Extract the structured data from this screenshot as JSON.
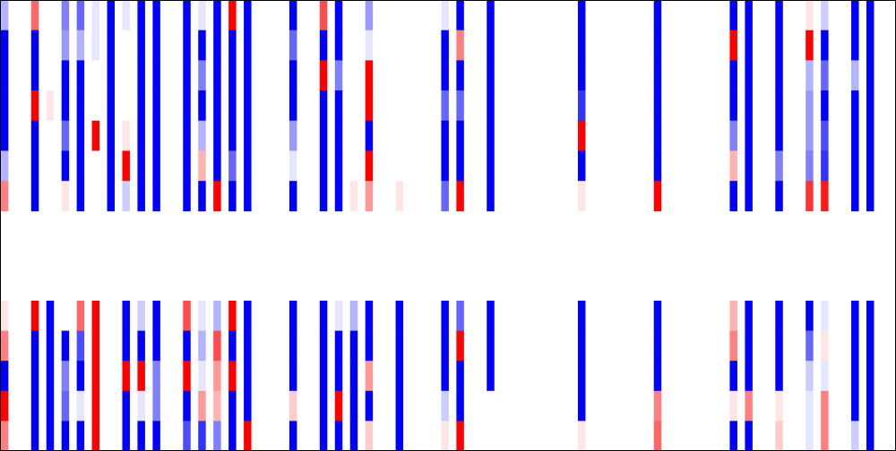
{
  "colors": {
    "negative": "#0000ff",
    "neutral": "#ffffff",
    "positive": "#ff0000",
    "border": "#000000"
  },
  "chart_data": {
    "type": "heatmap",
    "title": "",
    "xlabel": "",
    "ylabel": "",
    "color_scale": {
      "min": -1,
      "max": 1,
      "low_color": "#0000ff",
      "mid_color": "#ffffff",
      "high_color": "#ff0000"
    },
    "grid": false,
    "legend": "none",
    "cols": 59,
    "blocks": [
      {
        "name": "",
        "rows": 7,
        "columns": [
          {
            "col": 0,
            "values": [
              -0.3,
              -1,
              -1,
              -1,
              -1,
              -0.3,
              0.5
            ]
          },
          {
            "col": 2,
            "values": [
              0.6,
              -1,
              -1,
              1,
              -1,
              -1,
              -1
            ]
          },
          {
            "col": 3,
            "values": [
              0,
              0,
              0,
              0.1,
              0,
              0,
              0
            ]
          },
          {
            "col": 4,
            "values": [
              -0.5,
              -0.4,
              -1,
              -1,
              -0.6,
              -1,
              0.1
            ]
          },
          {
            "col": 5,
            "values": [
              -0.6,
              -0.3,
              -1,
              -1,
              -1,
              -1,
              -1
            ]
          },
          {
            "col": 6,
            "values": [
              -0.1,
              -0.1,
              0,
              0,
              1,
              0,
              0
            ]
          },
          {
            "col": 7,
            "values": [
              -1,
              -1,
              -1,
              -1,
              -1,
              -1,
              -1
            ]
          },
          {
            "col": 8,
            "values": [
              -0.1,
              0,
              0,
              0,
              0.1,
              1,
              -0.2
            ]
          },
          {
            "col": 9,
            "values": [
              -1,
              -1,
              -1,
              -1,
              -1,
              -1,
              -1
            ]
          },
          {
            "col": 10,
            "values": [
              -1,
              -1,
              -1,
              -1,
              -1,
              -1,
              -1
            ]
          },
          {
            "col": 12,
            "values": [
              -1,
              -1,
              -1,
              -1,
              -1,
              -1,
              -1
            ]
          },
          {
            "col": 13,
            "values": [
              -0.1,
              -1,
              -0.5,
              -1,
              -0.3,
              0.3,
              -1
            ]
          },
          {
            "col": 14,
            "values": [
              -1,
              -1,
              -1,
              -1,
              -1,
              -1,
              1
            ]
          },
          {
            "col": 15,
            "values": [
              1,
              -1,
              -1,
              -1,
              -1,
              -0.6,
              -1
            ]
          },
          {
            "col": 16,
            "values": [
              -1,
              -1,
              -1,
              -1,
              -1,
              -1,
              -1
            ]
          },
          {
            "col": 19,
            "values": [
              -1,
              -0.6,
              -1,
              -1,
              -0.4,
              -0.1,
              -1
            ]
          },
          {
            "col": 21,
            "values": [
              0.7,
              -1,
              1,
              -1,
              -1,
              -1,
              -1
            ]
          },
          {
            "col": 22,
            "values": [
              -1,
              -1,
              -0.5,
              -1,
              -1,
              -1,
              -1
            ]
          },
          {
            "col": 23,
            "values": [
              0,
              0,
              0,
              0,
              0,
              0,
              0.1
            ]
          },
          {
            "col": 24,
            "values": [
              -0.4,
              -0.1,
              1,
              1,
              -1,
              1,
              0.4
            ]
          },
          {
            "col": 26,
            "values": [
              0,
              0,
              0,
              0,
              0,
              0,
              0.1
            ]
          },
          {
            "col": 29,
            "values": [
              -0.1,
              -1,
              -1,
              -0.6,
              -1,
              -1,
              -0.6
            ]
          },
          {
            "col": 30,
            "values": [
              -1,
              0.5,
              -1,
              -0.6,
              -1,
              -1,
              1
            ]
          },
          {
            "col": 32,
            "values": [
              -1,
              -1,
              -1,
              -1,
              -1,
              -1,
              -1
            ]
          },
          {
            "col": 38,
            "values": [
              -1,
              -1,
              -1,
              -0.8,
              1,
              -1,
              0.1
            ]
          },
          {
            "col": 43,
            "values": [
              -1,
              -1,
              -1,
              -1,
              -1,
              -1,
              1
            ]
          },
          {
            "col": 48,
            "values": [
              -1,
              1,
              -1,
              -1,
              -0.5,
              0.3,
              -1
            ]
          },
          {
            "col": 49,
            "values": [
              -1,
              -1,
              -1,
              -1,
              -1,
              -1,
              -1
            ]
          },
          {
            "col": 51,
            "values": [
              -1,
              -1,
              -1,
              -1,
              -1,
              -0.5,
              -1
            ]
          },
          {
            "col": 53,
            "values": [
              0.1,
              1,
              -0.3,
              -0.4,
              -0.4,
              -0.5,
              0.8
            ]
          },
          {
            "col": 54,
            "values": [
              -0.2,
              -1,
              -0.6,
              -1,
              -0.7,
              -0.8,
              0.9
            ]
          },
          {
            "col": 55,
            "values": [
              0,
              0,
              0,
              0,
              0,
              0,
              0
            ]
          },
          {
            "col": 56,
            "values": [
              -1,
              -1,
              -0.3,
              -1,
              -1,
              -1,
              -1
            ]
          },
          {
            "col": 57,
            "values": [
              -1,
              -1,
              -1,
              -1,
              -1,
              -1,
              -1
            ]
          }
        ]
      },
      {
        "name": "",
        "rows": 5,
        "columns": [
          {
            "col": 0,
            "values": [
              0.1,
              0.5,
              -1,
              1,
              0.5
            ]
          },
          {
            "col": 2,
            "values": [
              1,
              -1,
              -1,
              -1,
              -1
            ]
          },
          {
            "col": 3,
            "values": [
              -1,
              -1,
              -1,
              -1,
              -1
            ]
          },
          {
            "col": 4,
            "values": [
              0,
              -1,
              -0.5,
              -0.6,
              -1
            ]
          },
          {
            "col": 5,
            "values": [
              0.6,
              -0.7,
              -1,
              -0.1,
              -1
            ]
          },
          {
            "col": 6,
            "values": [
              1,
              1,
              1,
              1,
              1
            ]
          },
          {
            "col": 8,
            "values": [
              -1,
              -1,
              1,
              -1,
              -1
            ]
          },
          {
            "col": 9,
            "values": [
              -0.2,
              -1,
              1,
              -0.1,
              -1
            ]
          },
          {
            "col": 10,
            "values": [
              -1,
              -1,
              -0.5,
              -0.5,
              -1
            ]
          },
          {
            "col": 12,
            "values": [
              0.7,
              -1,
              1,
              -1,
              -0.7
            ]
          },
          {
            "col": 13,
            "values": [
              -0.1,
              -0.3,
              -0.1,
              0.4,
              -0.8
            ]
          },
          {
            "col": 14,
            "values": [
              -0.3,
              0.7,
              0.4,
              0.3,
              -0.5
            ]
          },
          {
            "col": 15,
            "values": [
              1,
              -1,
              1,
              -1,
              -1
            ]
          },
          {
            "col": 16,
            "values": [
              -1,
              -1,
              -1,
              -1,
              1
            ]
          },
          {
            "col": 19,
            "values": [
              -1,
              -1,
              -1,
              0.2,
              -1
            ]
          },
          {
            "col": 21,
            "values": [
              -1,
              -1,
              -1,
              -1,
              -1
            ]
          },
          {
            "col": 22,
            "values": [
              -0.1,
              -1,
              -1,
              1,
              -1
            ]
          },
          {
            "col": 23,
            "values": [
              -0.3,
              -1,
              -1,
              -1,
              -1
            ]
          },
          {
            "col": 24,
            "values": [
              -1,
              -1,
              0.4,
              -1,
              0.2
            ]
          },
          {
            "col": 26,
            "values": [
              -1,
              -1,
              -1,
              -1,
              -1
            ]
          },
          {
            "col": 29,
            "values": [
              -1,
              -1,
              -1,
              -0.2,
              0.1
            ]
          },
          {
            "col": 30,
            "values": [
              -0.6,
              1,
              -1,
              -1,
              1
            ]
          },
          {
            "col": 32,
            "values": [
              -1,
              -1,
              -1,
              0,
              0
            ]
          },
          {
            "col": 38,
            "values": [
              -1,
              -1,
              -1,
              -1,
              0.1
            ]
          },
          {
            "col": 43,
            "values": [
              -1,
              -1,
              -1,
              0.5,
              0.6
            ]
          },
          {
            "col": 48,
            "values": [
              0.3,
              0.5,
              -1,
              0.1,
              -1
            ]
          },
          {
            "col": 49,
            "values": [
              -1,
              -1,
              -1,
              0.5,
              -1
            ]
          },
          {
            "col": 51,
            "values": [
              -1,
              -1,
              -1,
              0.1,
              0.2
            ]
          },
          {
            "col": 53,
            "values": [
              -1,
              -0.6,
              -0.2,
              -0.1,
              -0.1
            ]
          },
          {
            "col": 54,
            "values": [
              -0.1,
              0.1,
              -0.1,
              0.5,
              0.5
            ]
          },
          {
            "col": 56,
            "values": [
              -1,
              -1,
              -1,
              -1,
              -0.2
            ]
          },
          {
            "col": 57,
            "values": [
              -1,
              -1,
              -1,
              -1,
              -1
            ]
          }
        ]
      }
    ]
  }
}
